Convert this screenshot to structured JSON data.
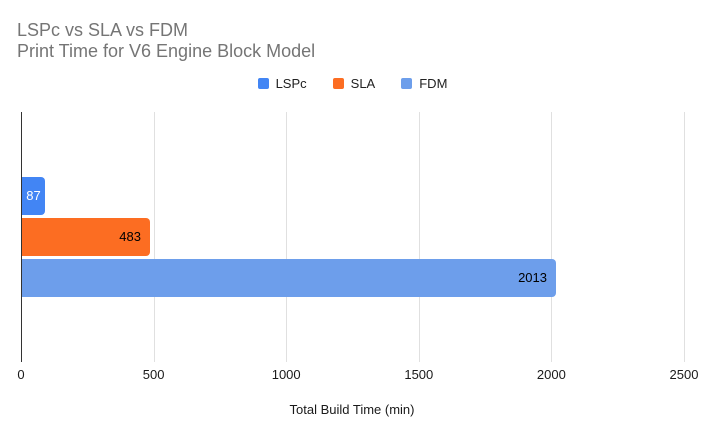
{
  "chart_data": {
    "type": "bar",
    "orientation": "horizontal",
    "title": "LSPc vs SLA vs FDM",
    "subtitle": "Print Time for V6 Engine Block Model",
    "xlabel": "Total Build Time (min)",
    "xlim": [
      0,
      2500
    ],
    "xticks": [
      "0",
      "500",
      "1000",
      "1500",
      "2000",
      "2500"
    ],
    "xtick_values": [
      0,
      500,
      1000,
      1500,
      2000,
      2500
    ],
    "grid": true,
    "legend_position": "top",
    "series": [
      {
        "name": "LSPc",
        "value": 87,
        "label": "87",
        "color": "#4285F4",
        "label_color": "#ffffff"
      },
      {
        "name": "SLA",
        "value": 483,
        "label": "483",
        "color": "#FC6D22",
        "label_color": "#000000"
      },
      {
        "name": "FDM",
        "value": 2013,
        "label": "2013",
        "color": "#6D9EEB",
        "label_color": "#000000"
      }
    ]
  },
  "style": {
    "title_color": "#757575",
    "axis_line_color": "#333333",
    "gridline_color": "#e0e0e0",
    "background": "#ffffff"
  }
}
